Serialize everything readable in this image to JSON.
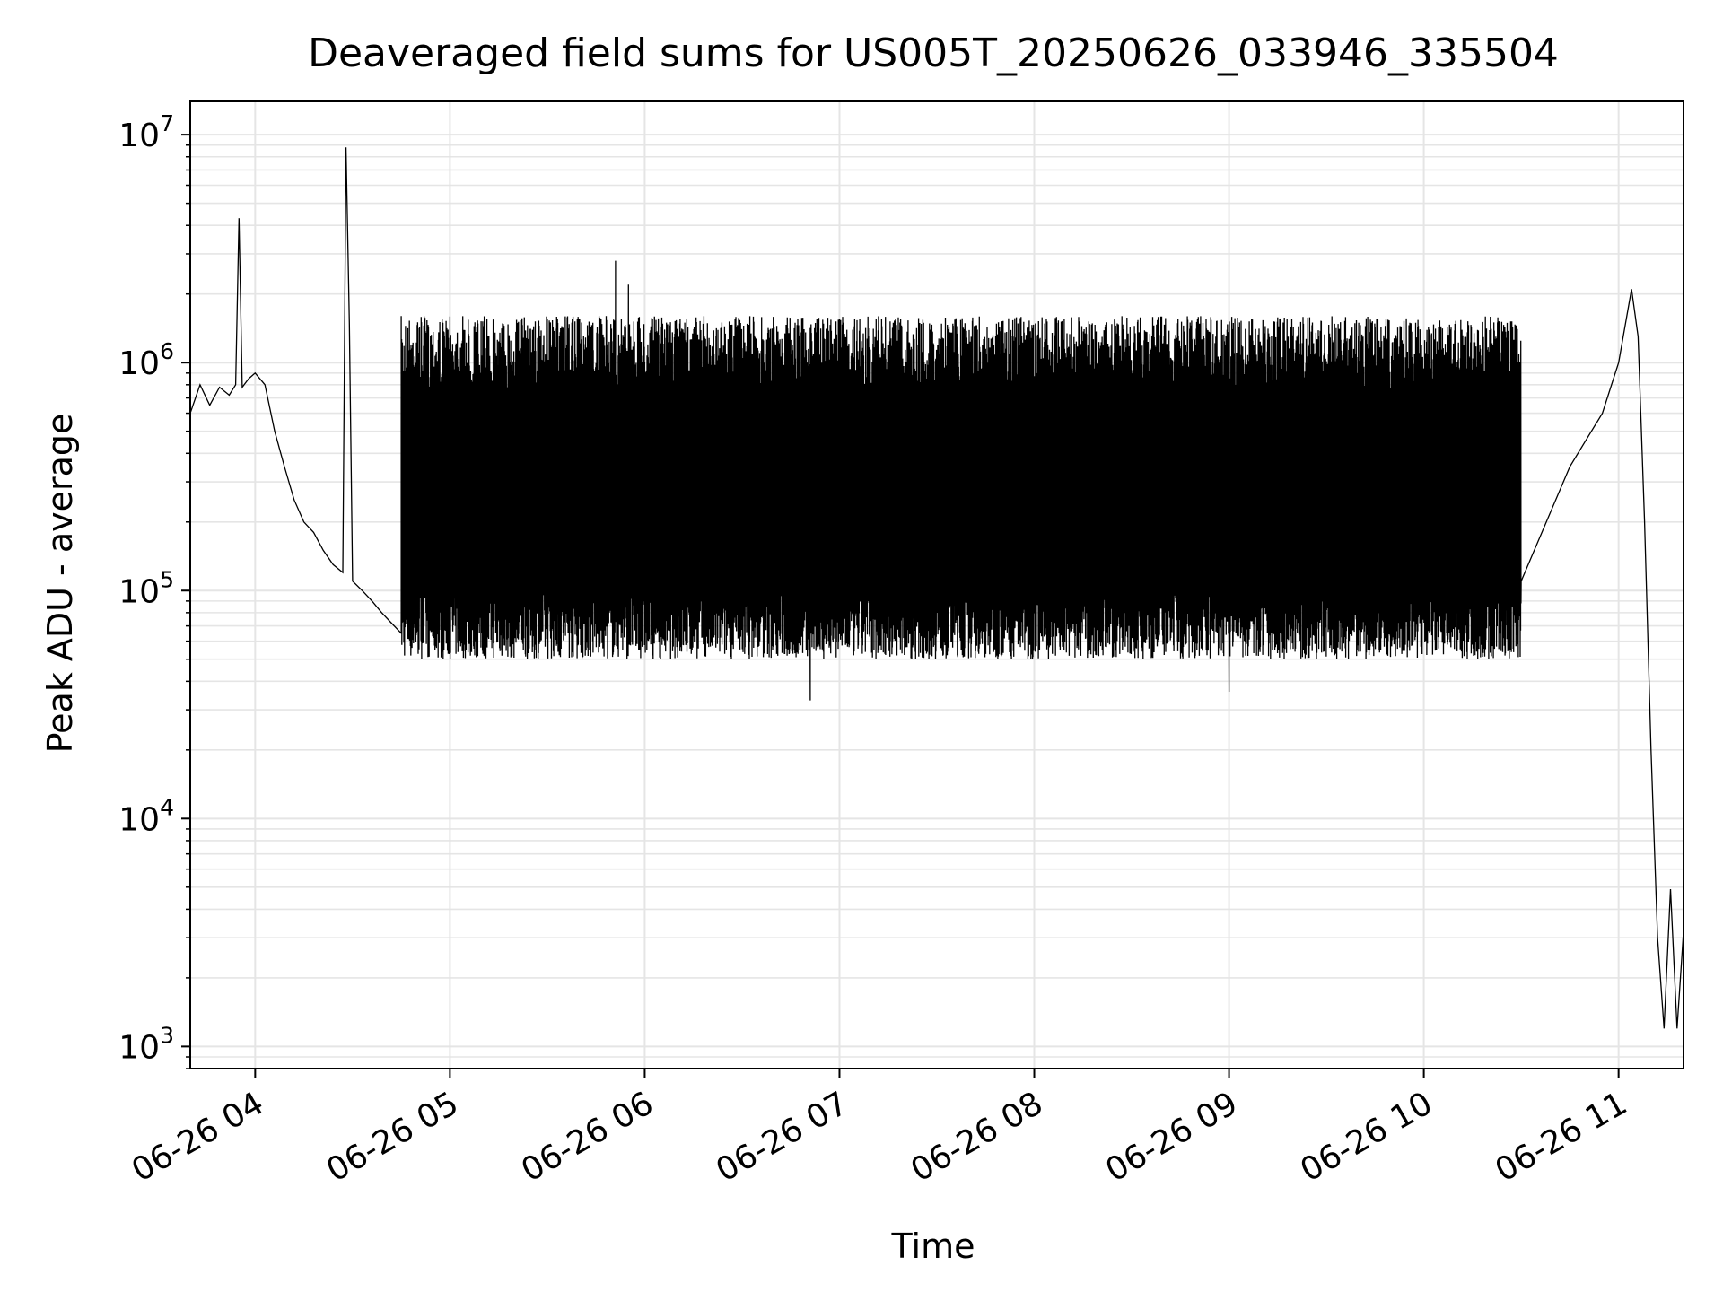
{
  "chart_data": {
    "type": "line",
    "title": "Deaveraged field sums for US005T_20250626_033946_335504",
    "xlabel": "Time",
    "ylabel": "Peak ADU - average",
    "yscale": "log",
    "ylim": [
      800,
      14000000
    ],
    "xlim": [
      "06-26 03:40",
      "06-26 11:20"
    ],
    "grid": true,
    "line_color": "#000000",
    "grid_color": "#e5e5e5",
    "x_ticks": [
      {
        "t": "06-26 04:00",
        "label": "06-26 04"
      },
      {
        "t": "06-26 05:00",
        "label": "06-26 05"
      },
      {
        "t": "06-26 06:00",
        "label": "06-26 06"
      },
      {
        "t": "06-26 07:00",
        "label": "06-26 07"
      },
      {
        "t": "06-26 08:00",
        "label": "06-26 08"
      },
      {
        "t": "06-26 09:00",
        "label": "06-26 09"
      },
      {
        "t": "06-26 10:00",
        "label": "06-26 10"
      },
      {
        "t": "06-26 11:00",
        "label": "06-26 11"
      }
    ],
    "y_ticks": [
      {
        "v": 1000,
        "base": "10",
        "exp": "3"
      },
      {
        "v": 10000,
        "base": "10",
        "exp": "4"
      },
      {
        "v": 100000,
        "base": "10",
        "exp": "5"
      },
      {
        "v": 1000000,
        "base": "10",
        "exp": "6"
      },
      {
        "v": 10000000,
        "base": "10",
        "exp": "7"
      }
    ],
    "series": [
      {
        "points": [
          [
            "06-26 03:40",
            600000
          ],
          [
            "06-26 03:43",
            800000
          ],
          [
            "06-26 03:46",
            650000
          ],
          [
            "06-26 03:49",
            780000
          ],
          [
            "06-26 03:52",
            720000
          ],
          [
            "06-26 03:54",
            800000
          ],
          [
            "06-26 03:55",
            4300000
          ],
          [
            "06-26 03:56",
            780000
          ],
          [
            "06-26 03:58",
            850000
          ],
          [
            "06-26 04:00",
            900000
          ],
          [
            "06-26 04:03",
            800000
          ],
          [
            "06-26 04:06",
            500000
          ],
          [
            "06-26 04:09",
            350000
          ],
          [
            "06-26 04:12",
            250000
          ],
          [
            "06-26 04:15",
            200000
          ],
          [
            "06-26 04:18",
            180000
          ],
          [
            "06-26 04:21",
            150000
          ],
          [
            "06-26 04:24",
            130000
          ],
          [
            "06-26 04:27",
            120000
          ],
          [
            "06-26 04:28",
            8800000
          ],
          [
            "06-26 04:29",
            1500000
          ],
          [
            "06-26 04:30",
            110000
          ],
          [
            "06-26 04:33",
            100000
          ],
          [
            "06-26 04:36",
            90000
          ],
          [
            "06-26 04:39",
            80000
          ],
          [
            "06-26 04:42",
            72000
          ],
          [
            "06-26 04:45",
            65000
          ],
          [
            "06-26 04:48",
            60000
          ],
          [
            "06-26 05:51",
            2800000
          ],
          [
            "06-26 05:55",
            2200000
          ],
          [
            "06-26 06:51",
            33000
          ],
          [
            "06-26 09:00",
            36000
          ],
          [
            "06-26 10:30",
            110000
          ],
          [
            "06-26 10:45",
            350000
          ],
          [
            "06-26 10:55",
            600000
          ],
          [
            "06-26 11:00",
            1000000
          ],
          [
            "06-26 11:04",
            2100000
          ],
          [
            "06-26 11:06",
            1300000
          ],
          [
            "06-26 11:08",
            200000
          ],
          [
            "06-26 11:10",
            20000
          ],
          [
            "06-26 11:12",
            3000
          ],
          [
            "06-26 11:14",
            1200
          ],
          [
            "06-26 11:16",
            4900
          ],
          [
            "06-26 11:18",
            1200
          ],
          [
            "06-26 11:20",
            3200
          ]
        ],
        "band": {
          "t_start": "06-26 04:45",
          "t_end": "06-26 10:30",
          "top": 1600000,
          "bottom": 50000
        }
      }
    ]
  }
}
